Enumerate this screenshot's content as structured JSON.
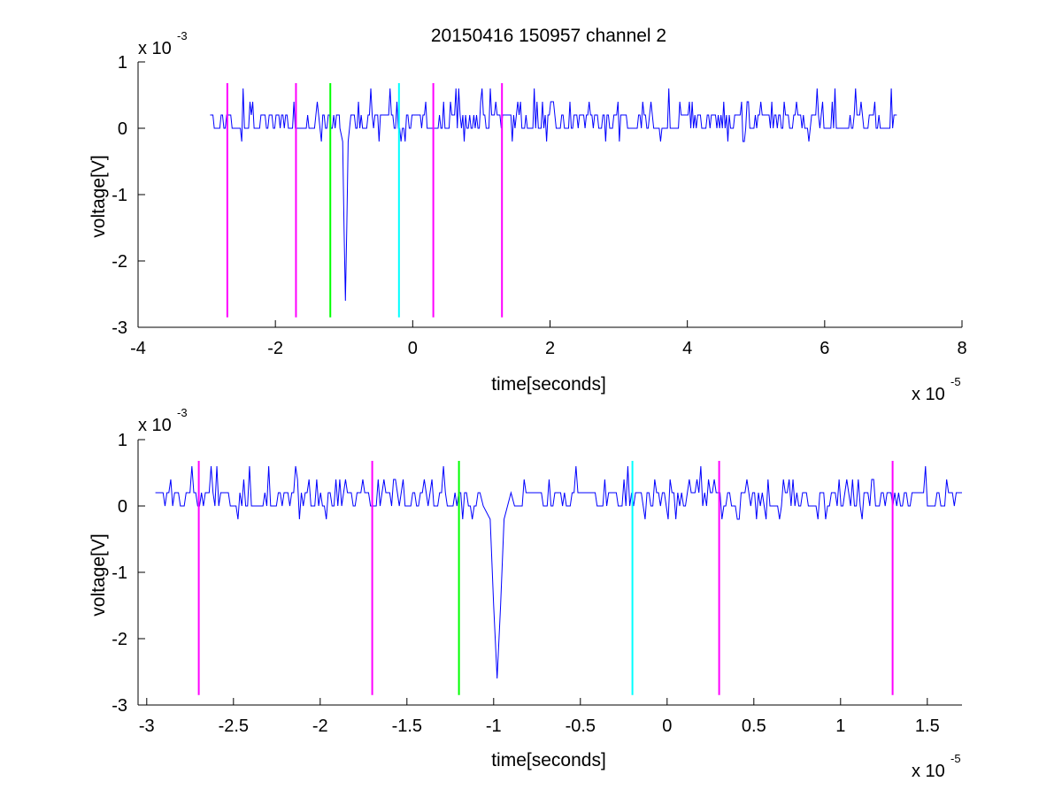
{
  "chart_data": [
    {
      "type": "line",
      "title": "20150416 150957 channel 2",
      "xlabel": "time[seconds]",
      "ylabel": "voltage[V]",
      "x_multiplier": "x 10",
      "x_exponent": "-5",
      "y_multiplier": "x 10",
      "y_exponent": "-3",
      "xlim": [
        -4,
        8
      ],
      "ylim": [
        -3,
        1
      ],
      "xticks": [
        -4,
        -2,
        0,
        2,
        4,
        6,
        8
      ],
      "xtick_labels": [
        "-4",
        "-2",
        "0",
        "2",
        "4",
        "6",
        "8"
      ],
      "yticks": [
        -3,
        -2,
        -1,
        0,
        1
      ],
      "ytick_labels": [
        "-3",
        "-2",
        "-1",
        "0",
        "1"
      ],
      "grid": false,
      "legend": "none",
      "signal": {
        "color": "#0000ff",
        "x_range": [
          -2.95,
          7.05
        ],
        "baseline_levels": [
          0.0,
          0.2
        ],
        "noise_min": -0.4,
        "noise_max": 0.6,
        "spike": {
          "x": -0.98,
          "min": -2.6
        }
      },
      "markers": [
        {
          "x": -2.7,
          "color": "#ff00ff",
          "y_range": [
            -2.85,
            0.68
          ]
        },
        {
          "x": -1.7,
          "color": "#ff00ff",
          "y_range": [
            -2.85,
            0.68
          ]
        },
        {
          "x": -1.2,
          "color": "#00ff00",
          "y_range": [
            -2.85,
            0.68
          ]
        },
        {
          "x": -0.2,
          "color": "#00ffff",
          "y_range": [
            -2.85,
            0.68
          ]
        },
        {
          "x": 0.3,
          "color": "#ff00ff",
          "y_range": [
            -2.85,
            0.68
          ]
        },
        {
          "x": 1.3,
          "color": "#ff00ff",
          "y_range": [
            -2.85,
            0.68
          ]
        }
      ]
    },
    {
      "type": "line",
      "title": "",
      "xlabel": "time[seconds]",
      "ylabel": "voltage[V]",
      "x_multiplier": "x 10",
      "x_exponent": "-5",
      "y_multiplier": "x 10",
      "y_exponent": "-3",
      "xlim": [
        -3.05,
        1.7
      ],
      "ylim": [
        -3,
        1
      ],
      "xticks": [
        -3,
        -2.5,
        -2,
        -1.5,
        -1,
        -0.5,
        0,
        0.5,
        1,
        1.5
      ],
      "xtick_labels": [
        "-3",
        "-2.5",
        "-2",
        "-1.5",
        "-1",
        "-0.5",
        "0",
        "0.5",
        "1",
        "1.5"
      ],
      "yticks": [
        -3,
        -2,
        -1,
        0,
        1
      ],
      "ytick_labels": [
        "-3",
        "-2",
        "-1",
        "0",
        "1"
      ],
      "grid": false,
      "legend": "none",
      "signal": {
        "color": "#0000ff",
        "x_range": [
          -2.95,
          1.7
        ],
        "baseline_levels": [
          0.0,
          0.2
        ],
        "noise_min": -0.2,
        "noise_max": 0.6,
        "spike": {
          "x": -0.98,
          "min": -2.6
        }
      },
      "markers": [
        {
          "x": -2.7,
          "color": "#ff00ff",
          "y_range": [
            -2.85,
            0.68
          ]
        },
        {
          "x": -1.7,
          "color": "#ff00ff",
          "y_range": [
            -2.85,
            0.68
          ]
        },
        {
          "x": -1.2,
          "color": "#00ff00",
          "y_range": [
            -2.85,
            0.68
          ]
        },
        {
          "x": -0.2,
          "color": "#00ffff",
          "y_range": [
            -2.85,
            0.68
          ]
        },
        {
          "x": 0.3,
          "color": "#ff00ff",
          "y_range": [
            -2.85,
            0.68
          ]
        },
        {
          "x": 1.3,
          "color": "#ff00ff",
          "y_range": [
            -2.85,
            0.68
          ]
        }
      ]
    }
  ]
}
